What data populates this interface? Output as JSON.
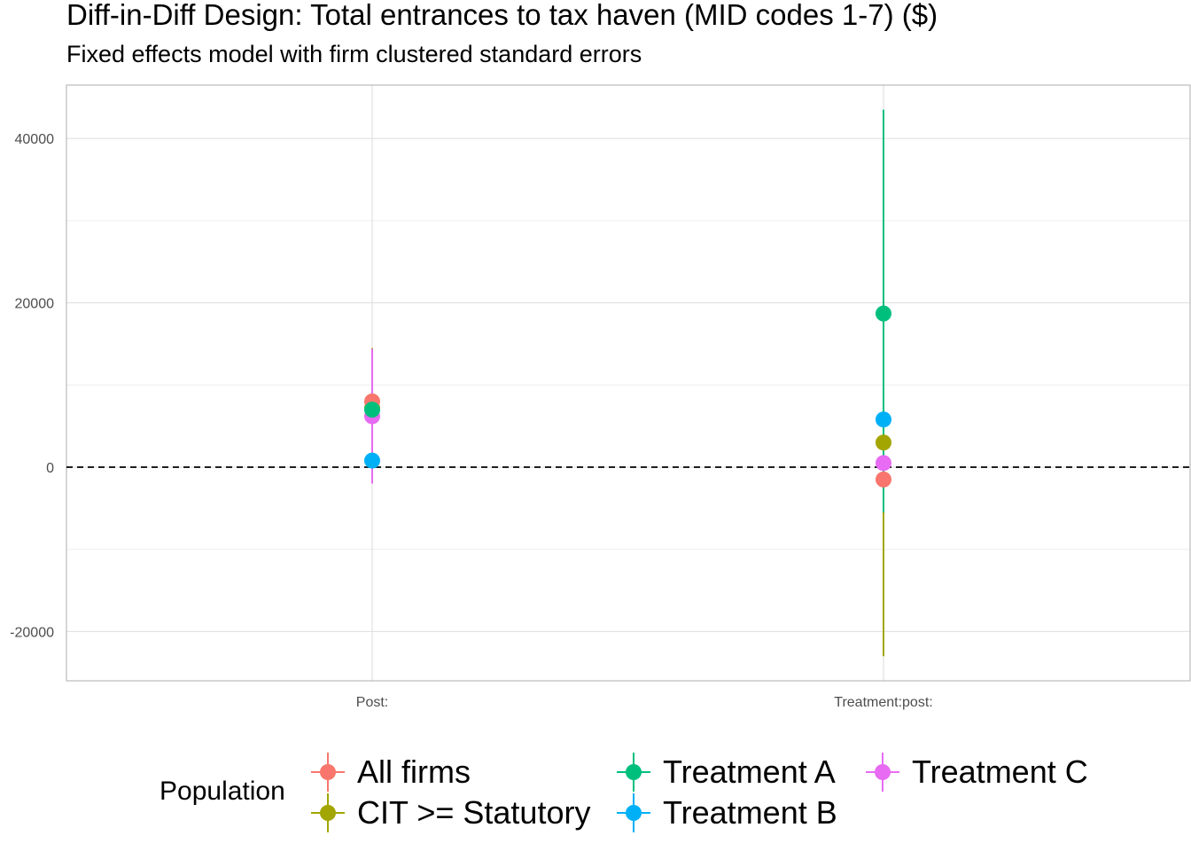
{
  "chart_data": {
    "type": "scatter",
    "title": "Diff-in-Diff Design: Total entrances to tax haven (MID codes 1-7)  ($)",
    "subtitle": "Fixed effects model with firm clustered standard errors",
    "categories": [
      "Post:",
      "Treatment:post:"
    ],
    "y_ticks": [
      40000,
      20000,
      0,
      -20000
    ],
    "y_tick_labels": [
      "40000",
      "20000",
      "0",
      "-20000"
    ],
    "ylim": [
      -26000,
      46500
    ],
    "reference_line": 0,
    "grid": true,
    "legend": {
      "title": "Population",
      "position": "bottom"
    },
    "series": [
      {
        "name": "All firms",
        "color": "#F8766D",
        "values": [
          8000,
          -1500
        ],
        "lower": [
          7200,
          -1900
        ],
        "upper": [
          8800,
          -1100
        ]
      },
      {
        "name": "CIT >= Statutory",
        "color": "#A3A500",
        "values": [
          7200,
          3000
        ],
        "lower": [
          -100,
          -23000
        ],
        "upper": [
          14500,
          29000
        ]
      },
      {
        "name": "Treatment A",
        "color": "#00BF7D",
        "values": [
          7000,
          18700
        ],
        "lower": [
          6200,
          -5500
        ],
        "upper": [
          7800,
          43500
        ]
      },
      {
        "name": "Treatment B",
        "color": "#00B0F6",
        "values": [
          800,
          5800
        ],
        "lower": [
          400,
          5000
        ],
        "upper": [
          1200,
          6600
        ]
      },
      {
        "name": "Treatment C",
        "color": "#E76BF3",
        "values": [
          6200,
          500
        ],
        "lower": [
          -2000,
          -300
        ],
        "upper": [
          14400,
          1300
        ]
      }
    ]
  }
}
